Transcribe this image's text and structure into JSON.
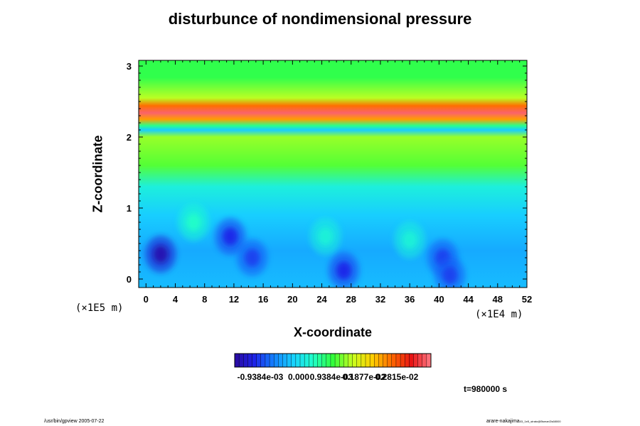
{
  "footer": {
    "left": "/usr/bin/gpview 2005-07-22",
    "right": "arare-nakajima",
    "right_small": "03_1e5_strato@Bsmar/Zs68000"
  },
  "chart_data": {
    "type": "heatmap",
    "title": "disturbunce of nondimensional pressure",
    "xlabel": "X-coordinate",
    "ylabel": "Z-coordinate",
    "x_unit": "(×1E4 m)",
    "y_unit": "(×1E5 m)",
    "x_ticks": [
      "0",
      "4",
      "8",
      "12",
      "16",
      "20",
      "24",
      "28",
      "32",
      "36",
      "40",
      "44",
      "48",
      "52"
    ],
    "y_ticks": [
      "0",
      "1",
      "2",
      "3"
    ],
    "xlim": [
      -1,
      52
    ],
    "ylim": [
      -0.12,
      3.08
    ],
    "time_label": "t=980000 s",
    "colorbar": {
      "labels": [
        "-0.9384e-03",
        "0.000",
        "0.9384e-03",
        "0.1877e-02",
        "0.2815e-02"
      ],
      "min": -0.0014,
      "max": 0.003,
      "levels": 45
    },
    "colors": [
      "#2a0aa0",
      "#1e24e8",
      "#1482ff",
      "#18d2ff",
      "#20ffc8",
      "#32ff3c",
      "#c8ff20",
      "#ffd000",
      "#ff6a00",
      "#e81414",
      "#ff7a86"
    ],
    "bands": [
      {
        "z": 2.84,
        "value": 0.00075
      },
      {
        "z": 2.55,
        "value": 0.0012
      },
      {
        "z": 2.44,
        "value": 0.0021
      },
      {
        "z": 2.34,
        "value": 0.0029
      },
      {
        "z": 2.25,
        "value": 0.0019
      },
      {
        "z": 2.16,
        "value": 0.00055
      },
      {
        "z": 2.1,
        "value": -0.0001
      },
      {
        "z": 2.0,
        "value": 0.0011
      },
      {
        "z": 1.6,
        "value": 0.0009
      },
      {
        "z": 1.3,
        "value": 0.0002
      },
      {
        "z": 0.9,
        "value": -0.0001
      },
      {
        "z": 0.4,
        "value": -0.0003
      },
      {
        "z": -0.12,
        "value": -0.0002
      }
    ],
    "blobs": [
      {
        "x": 2,
        "z": 0.35,
        "value": -0.0011
      },
      {
        "x": 11.5,
        "z": 0.6,
        "value": -0.0008
      },
      {
        "x": 14.5,
        "z": 0.3,
        "value": -0.0007
      },
      {
        "x": 27,
        "z": 0.12,
        "value": -0.0008
      },
      {
        "x": 40.5,
        "z": 0.3,
        "value": -0.0007
      },
      {
        "x": 41.5,
        "z": 0.05,
        "value": -0.0007
      },
      {
        "x": 6.5,
        "z": 0.8,
        "value": 0.0003
      },
      {
        "x": 24.5,
        "z": 0.6,
        "value": 0.0002
      },
      {
        "x": 36,
        "z": 0.55,
        "value": 0.0002
      }
    ]
  }
}
